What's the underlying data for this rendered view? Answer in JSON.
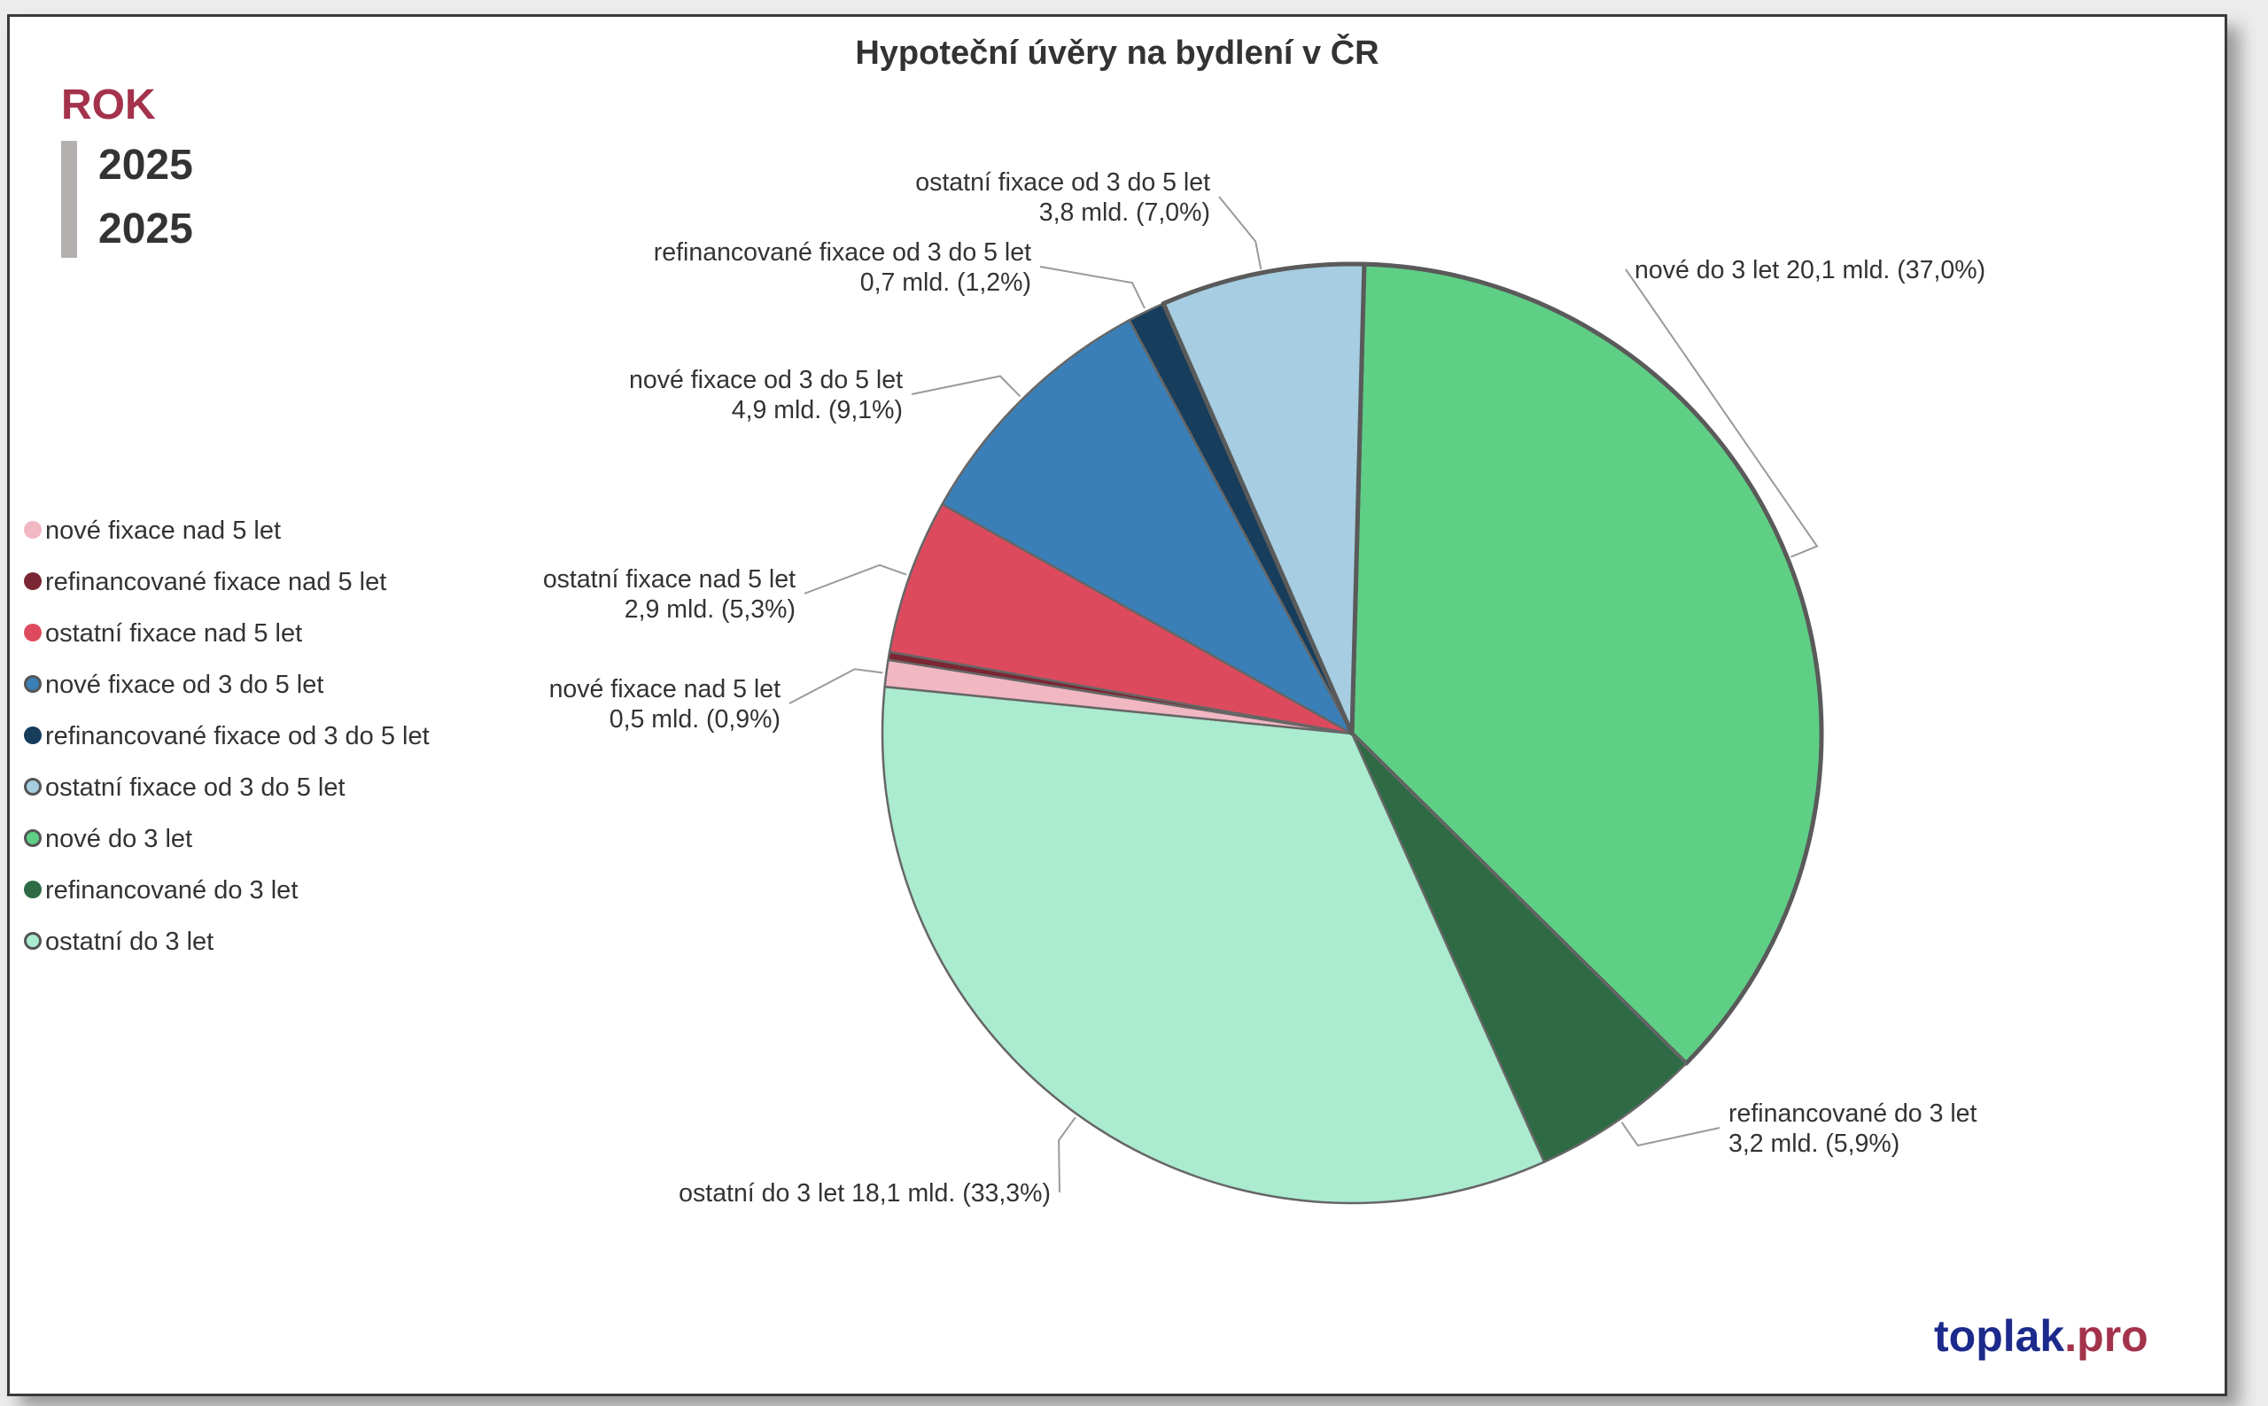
{
  "chart_data": {
    "type": "pie",
    "title": "Hypoteční úvěry na bydlení v ČR",
    "slices": [
      {
        "category": "nové do 3 let",
        "value": 20.1,
        "value_label": "20,1 mld.",
        "percent_label": "(37,0%)",
        "color": "#5fcf86"
      },
      {
        "category": "refinancované do 3 let",
        "value": 3.2,
        "value_label": "3,2 mld.",
        "percent_label": "(5,9%)",
        "color": "#2e6b45"
      },
      {
        "category": "ostatní do 3 let",
        "value": 18.1,
        "value_label": "18,1 mld.",
        "percent_label": "(33,3%)",
        "color": "#abebd0"
      },
      {
        "category": "nové fixace nad 5 let",
        "value": 0.5,
        "value_label": "0,5 mld.",
        "percent_label": "(0,9%)",
        "color": "#f1b7c3"
      },
      {
        "category": "refinancované fixace nad 5 let",
        "value": 0.15,
        "value_label": "",
        "percent_label": "",
        "color": "#7a2633"
      },
      {
        "category": "ostatní fixace nad 5 let",
        "value": 2.9,
        "value_label": "2,9 mld.",
        "percent_label": "(5,3%)",
        "color": "#dd4a5e"
      },
      {
        "category": "nové fixace od 3 do 5 let",
        "value": 4.9,
        "value_label": "4,9 mld.",
        "percent_label": "(9,1%)",
        "color": "#3a7fb7"
      },
      {
        "category": "refinancované fixace od 3 do 5 let",
        "value": 0.7,
        "value_label": "0,7 mld.",
        "percent_label": "(1,2%)",
        "color": "#173d5c"
      },
      {
        "category": "ostatní fixace od 3 do 5 let",
        "value": 3.8,
        "value_label": "3,8 mld.",
        "percent_label": "(7,0%)",
        "color": "#a6cde1"
      }
    ],
    "legend": {
      "placement": "left",
      "entries": [
        {
          "label": "nové fixace nad 5 let",
          "color": "#f1b7c3",
          "ring": false
        },
        {
          "label": "refinancované fixace nad 5 let",
          "color": "#7a2633",
          "ring": false
        },
        {
          "label": "ostatní fixace nad 5 let",
          "color": "#dd4a5e",
          "ring": false
        },
        {
          "label": "nové fixace od 3 do 5 let",
          "color": "#3a7fb7",
          "ring": true
        },
        {
          "label": "refinancované  fixace od 3 do 5 let",
          "color": "#173d5c",
          "ring": false
        },
        {
          "label": "ostatní fixace od 3 do 5 let",
          "color": "#a6cde1",
          "ring": true
        },
        {
          "label": "nové do 3 let",
          "color": "#5fcf86",
          "ring": true
        },
        {
          "label": "refinancované do 3 let",
          "color": "#2e6b45",
          "ring": false
        },
        {
          "label": "ostatní do 3 let",
          "color": "#abebd0",
          "ring": true
        }
      ]
    }
  },
  "slicer": {
    "title": "ROK",
    "items": [
      "2025",
      "2025"
    ]
  },
  "watermark": {
    "name": "toplak",
    "dot": ".",
    "suffix": "pro"
  }
}
